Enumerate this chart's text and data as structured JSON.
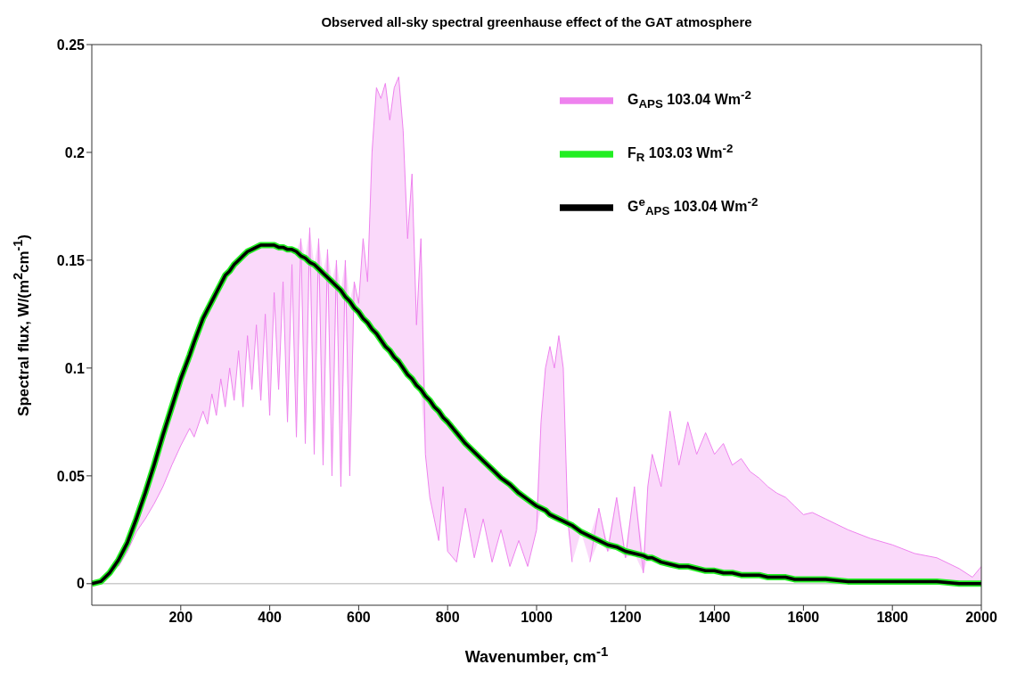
{
  "chart_data": {
    "type": "line",
    "title": "Observed all-sky spectral greenhause effect of the GAT atmosphere",
    "xlabel": "Wavenumber, cm$^{-1}$",
    "ylabel": "Spectral flux, W/(m$^{2}$cm$^{-1}$)",
    "x": [
      0,
      20,
      40,
      60,
      80,
      100,
      120,
      140,
      160,
      180,
      200,
      220,
      230,
      250,
      260,
      270,
      280,
      290,
      300,
      310,
      320,
      330,
      340,
      350,
      360,
      370,
      380,
      390,
      400,
      410,
      420,
      430,
      440,
      450,
      460,
      470,
      480,
      490,
      500,
      510,
      520,
      530,
      540,
      550,
      560,
      570,
      580,
      590,
      600,
      610,
      620,
      630,
      640,
      650,
      660,
      670,
      680,
      690,
      700,
      710,
      720,
      730,
      740,
      750,
      760,
      770,
      780,
      790,
      800,
      820,
      840,
      860,
      880,
      900,
      920,
      940,
      960,
      980,
      1000,
      1010,
      1020,
      1030,
      1040,
      1050,
      1060,
      1070,
      1080,
      1100,
      1120,
      1140,
      1160,
      1180,
      1200,
      1220,
      1240,
      1250,
      1260,
      1280,
      1300,
      1320,
      1340,
      1360,
      1380,
      1400,
      1420,
      1440,
      1460,
      1480,
      1500,
      1520,
      1540,
      1560,
      1580,
      1600,
      1620,
      1650,
      1700,
      1750,
      1800,
      1850,
      1900,
      1950,
      1980,
      2000
    ],
    "series": [
      {
        "name": "G$_{APS}$ 103.04 Wm$^{-2}$",
        "color": "#ee82ee",
        "values": [
          null,
          null,
          null,
          0.008,
          0.015,
          0.024,
          0.03,
          0.037,
          0.045,
          0.055,
          0.064,
          0.072,
          0.068,
          0.08,
          0.074,
          0.088,
          0.078,
          0.095,
          0.082,
          0.1,
          0.085,
          0.108,
          0.082,
          0.115,
          0.09,
          0.12,
          0.085,
          0.125,
          0.078,
          0.135,
          0.09,
          0.14,
          0.075,
          0.148,
          0.068,
          0.16,
          0.065,
          0.165,
          0.06,
          0.16,
          0.055,
          0.155,
          0.05,
          0.15,
          0.045,
          0.15,
          0.05,
          0.14,
          0.13,
          0.16,
          0.14,
          0.2,
          0.23,
          0.225,
          0.232,
          0.215,
          0.23,
          0.235,
          0.21,
          0.16,
          0.19,
          0.12,
          0.16,
          0.06,
          0.04,
          0.03,
          0.02,
          0.045,
          0.015,
          0.01,
          0.035,
          0.012,
          0.03,
          0.01,
          0.025,
          0.008,
          0.02,
          0.008,
          0.025,
          0.075,
          0.1,
          0.11,
          0.1,
          0.115,
          0.1,
          0.03,
          0.01,
          null,
          0.01,
          0.035,
          0.015,
          0.04,
          0.012,
          0.045,
          0.005,
          0.045,
          0.06,
          0.045,
          0.08,
          0.055,
          0.075,
          0.06,
          0.07,
          0.06,
          0.065,
          0.055,
          0.058,
          0.052,
          0.049,
          0.045,
          0.042,
          0.04,
          0.036,
          0.032,
          0.033,
          0.03,
          0.025,
          0.021,
          0.018,
          0.014,
          0.012,
          0.007,
          0.003,
          0.008
        ],
        "lower": [
          0,
          0.001,
          0.004,
          0.008,
          0.015,
          0.024,
          0.03,
          0.037,
          0.045,
          0.055,
          0.064,
          0.072,
          0.068,
          0.08,
          0.074,
          0.088,
          0.078,
          0.095,
          0.082,
          0.1,
          0.085,
          0.108,
          0.082,
          0.115,
          0.09,
          0.12,
          0.085,
          0.125,
          0.078,
          0.135,
          0.09,
          0.14,
          0.075,
          0.148,
          0.068,
          0.152,
          0.065,
          0.149,
          0.06,
          0.146,
          0.055,
          0.142,
          0.05,
          0.138,
          0.045,
          0.133,
          0.05,
          0.128,
          0.126,
          0.123,
          0.121,
          0.118,
          0.116,
          0.113,
          0.11,
          0.108,
          0.105,
          0.103,
          0.1,
          0.097,
          0.095,
          0.092,
          0.09,
          0.06,
          0.04,
          0.03,
          0.02,
          0.045,
          0.015,
          0.01,
          0.035,
          0.012,
          0.03,
          0.01,
          0.025,
          0.008,
          0.02,
          0.008,
          0.025,
          0.035,
          0.034,
          0.032,
          0.031,
          0.03,
          0.029,
          0.028,
          0.01,
          0.024,
          0.01,
          0.02,
          0.015,
          0.017,
          0.012,
          0.014,
          0.005,
          0.012,
          0.012,
          0.01,
          0.009,
          0.008,
          0.008,
          0.007,
          0.006,
          0.006,
          0.005,
          0.005,
          0.004,
          0.004,
          0.004,
          0.003,
          0.003,
          0.003,
          0.002,
          0.002,
          0.002,
          0.002,
          0.001,
          0.001,
          0.001,
          0.001,
          0.001,
          0,
          0,
          0
        ],
        "upper": [
          0,
          0.001,
          0.005,
          0.011,
          0.019,
          0.03,
          0.042,
          0.055,
          0.069,
          0.082,
          0.095,
          0.106,
          0.112,
          0.123,
          0.127,
          0.131,
          0.135,
          0.139,
          0.143,
          0.145,
          0.148,
          0.15,
          0.152,
          0.154,
          0.155,
          0.156,
          0.157,
          0.157,
          0.157,
          0.157,
          0.156,
          0.156,
          0.155,
          0.155,
          0.154,
          0.16,
          0.151,
          0.165,
          0.148,
          0.16,
          0.144,
          0.155,
          0.14,
          0.15,
          0.136,
          0.15,
          0.131,
          0.14,
          0.13,
          0.16,
          0.14,
          0.2,
          0.23,
          0.225,
          0.232,
          0.215,
          0.23,
          0.235,
          0.21,
          0.16,
          0.19,
          0.12,
          0.16,
          0.087,
          0.085,
          0.082,
          0.08,
          0.077,
          0.075,
          0.07,
          0.065,
          0.061,
          0.057,
          0.053,
          0.049,
          0.046,
          0.042,
          0.039,
          0.036,
          0.075,
          0.1,
          0.11,
          0.1,
          0.115,
          0.1,
          0.03,
          0.027,
          0.025,
          0.022,
          0.035,
          0.018,
          0.04,
          0.015,
          0.045,
          0.013,
          0.045,
          0.06,
          0.045,
          0.08,
          0.055,
          0.075,
          0.06,
          0.07,
          0.06,
          0.065,
          0.055,
          0.058,
          0.052,
          0.049,
          0.045,
          0.042,
          0.04,
          0.036,
          0.032,
          0.033,
          0.03,
          0.025,
          0.021,
          0.018,
          0.014,
          0.012,
          0.007,
          0.003,
          0.008
        ]
      },
      {
        "name": "F$_{R}$ 103.03 Wm$^{-2}$",
        "color": "#22ee22",
        "values": [
          0,
          0.001,
          0.005,
          0.011,
          0.019,
          0.03,
          0.042,
          0.055,
          0.069,
          0.082,
          0.095,
          0.106,
          0.112,
          0.123,
          0.127,
          0.131,
          0.135,
          0.139,
          0.143,
          0.145,
          0.148,
          0.15,
          0.152,
          0.154,
          0.155,
          0.156,
          0.157,
          0.157,
          0.157,
          0.157,
          0.156,
          0.156,
          0.155,
          0.155,
          0.154,
          0.152,
          0.151,
          0.149,
          0.148,
          0.146,
          0.144,
          0.142,
          0.14,
          0.138,
          0.136,
          0.133,
          0.131,
          0.128,
          0.126,
          0.123,
          0.121,
          0.118,
          0.116,
          0.113,
          0.11,
          0.108,
          0.105,
          0.103,
          0.1,
          0.097,
          0.095,
          0.092,
          0.09,
          0.087,
          0.085,
          0.082,
          0.08,
          0.077,
          0.075,
          0.07,
          0.065,
          0.061,
          0.057,
          0.053,
          0.049,
          0.046,
          0.042,
          0.039,
          0.036,
          0.035,
          0.034,
          0.032,
          0.031,
          0.03,
          0.029,
          0.028,
          0.027,
          0.024,
          0.022,
          0.02,
          0.018,
          0.017,
          0.015,
          0.014,
          0.013,
          0.012,
          0.012,
          0.01,
          0.009,
          0.008,
          0.008,
          0.007,
          0.006,
          0.006,
          0.005,
          0.005,
          0.004,
          0.004,
          0.004,
          0.003,
          0.003,
          0.003,
          0.002,
          0.002,
          0.002,
          0.002,
          0.001,
          0.001,
          0.001,
          0.001,
          0.001,
          0,
          0,
          0
        ]
      },
      {
        "name": "G$^{e}$$_{APS}$ 103.04 Wm$^{-2}$",
        "color": "#000000",
        "values": [
          0,
          0.001,
          0.005,
          0.011,
          0.019,
          0.03,
          0.042,
          0.055,
          0.069,
          0.082,
          0.095,
          0.106,
          0.112,
          0.123,
          0.127,
          0.131,
          0.135,
          0.139,
          0.143,
          0.145,
          0.148,
          0.15,
          0.152,
          0.154,
          0.155,
          0.156,
          0.157,
          0.157,
          0.157,
          0.157,
          0.156,
          0.156,
          0.155,
          0.155,
          0.154,
          0.152,
          0.151,
          0.149,
          0.148,
          0.146,
          0.144,
          0.142,
          0.14,
          0.138,
          0.136,
          0.133,
          0.131,
          0.128,
          0.126,
          0.123,
          0.121,
          0.118,
          0.116,
          0.113,
          0.11,
          0.108,
          0.105,
          0.103,
          0.1,
          0.097,
          0.095,
          0.092,
          0.09,
          0.087,
          0.085,
          0.082,
          0.08,
          0.077,
          0.075,
          0.07,
          0.065,
          0.061,
          0.057,
          0.053,
          0.049,
          0.046,
          0.042,
          0.039,
          0.036,
          0.035,
          0.034,
          0.032,
          0.031,
          0.03,
          0.029,
          0.028,
          0.027,
          0.024,
          0.022,
          0.02,
          0.018,
          0.017,
          0.015,
          0.014,
          0.013,
          0.012,
          0.012,
          0.01,
          0.009,
          0.008,
          0.008,
          0.007,
          0.006,
          0.006,
          0.005,
          0.005,
          0.004,
          0.004,
          0.004,
          0.003,
          0.003,
          0.003,
          0.002,
          0.002,
          0.002,
          0.002,
          0.001,
          0.001,
          0.001,
          0.001,
          0.001,
          0,
          0,
          0
        ]
      }
    ],
    "xlim": [
      0,
      2000
    ],
    "xticks": [
      200,
      400,
      600,
      800,
      1000,
      1200,
      1400,
      1600,
      1800,
      2000
    ],
    "ylim": [
      -0.01,
      0.25
    ],
    "yticks": [
      0,
      0.05,
      0.1,
      0.15,
      0.2,
      0.25
    ],
    "ref_lines": [
      {
        "axis": "y",
        "value": 0,
        "color": "#cccccc"
      }
    ],
    "grid": false,
    "legend": "top right",
    "marker": "none",
    "line_style": "solid"
  }
}
